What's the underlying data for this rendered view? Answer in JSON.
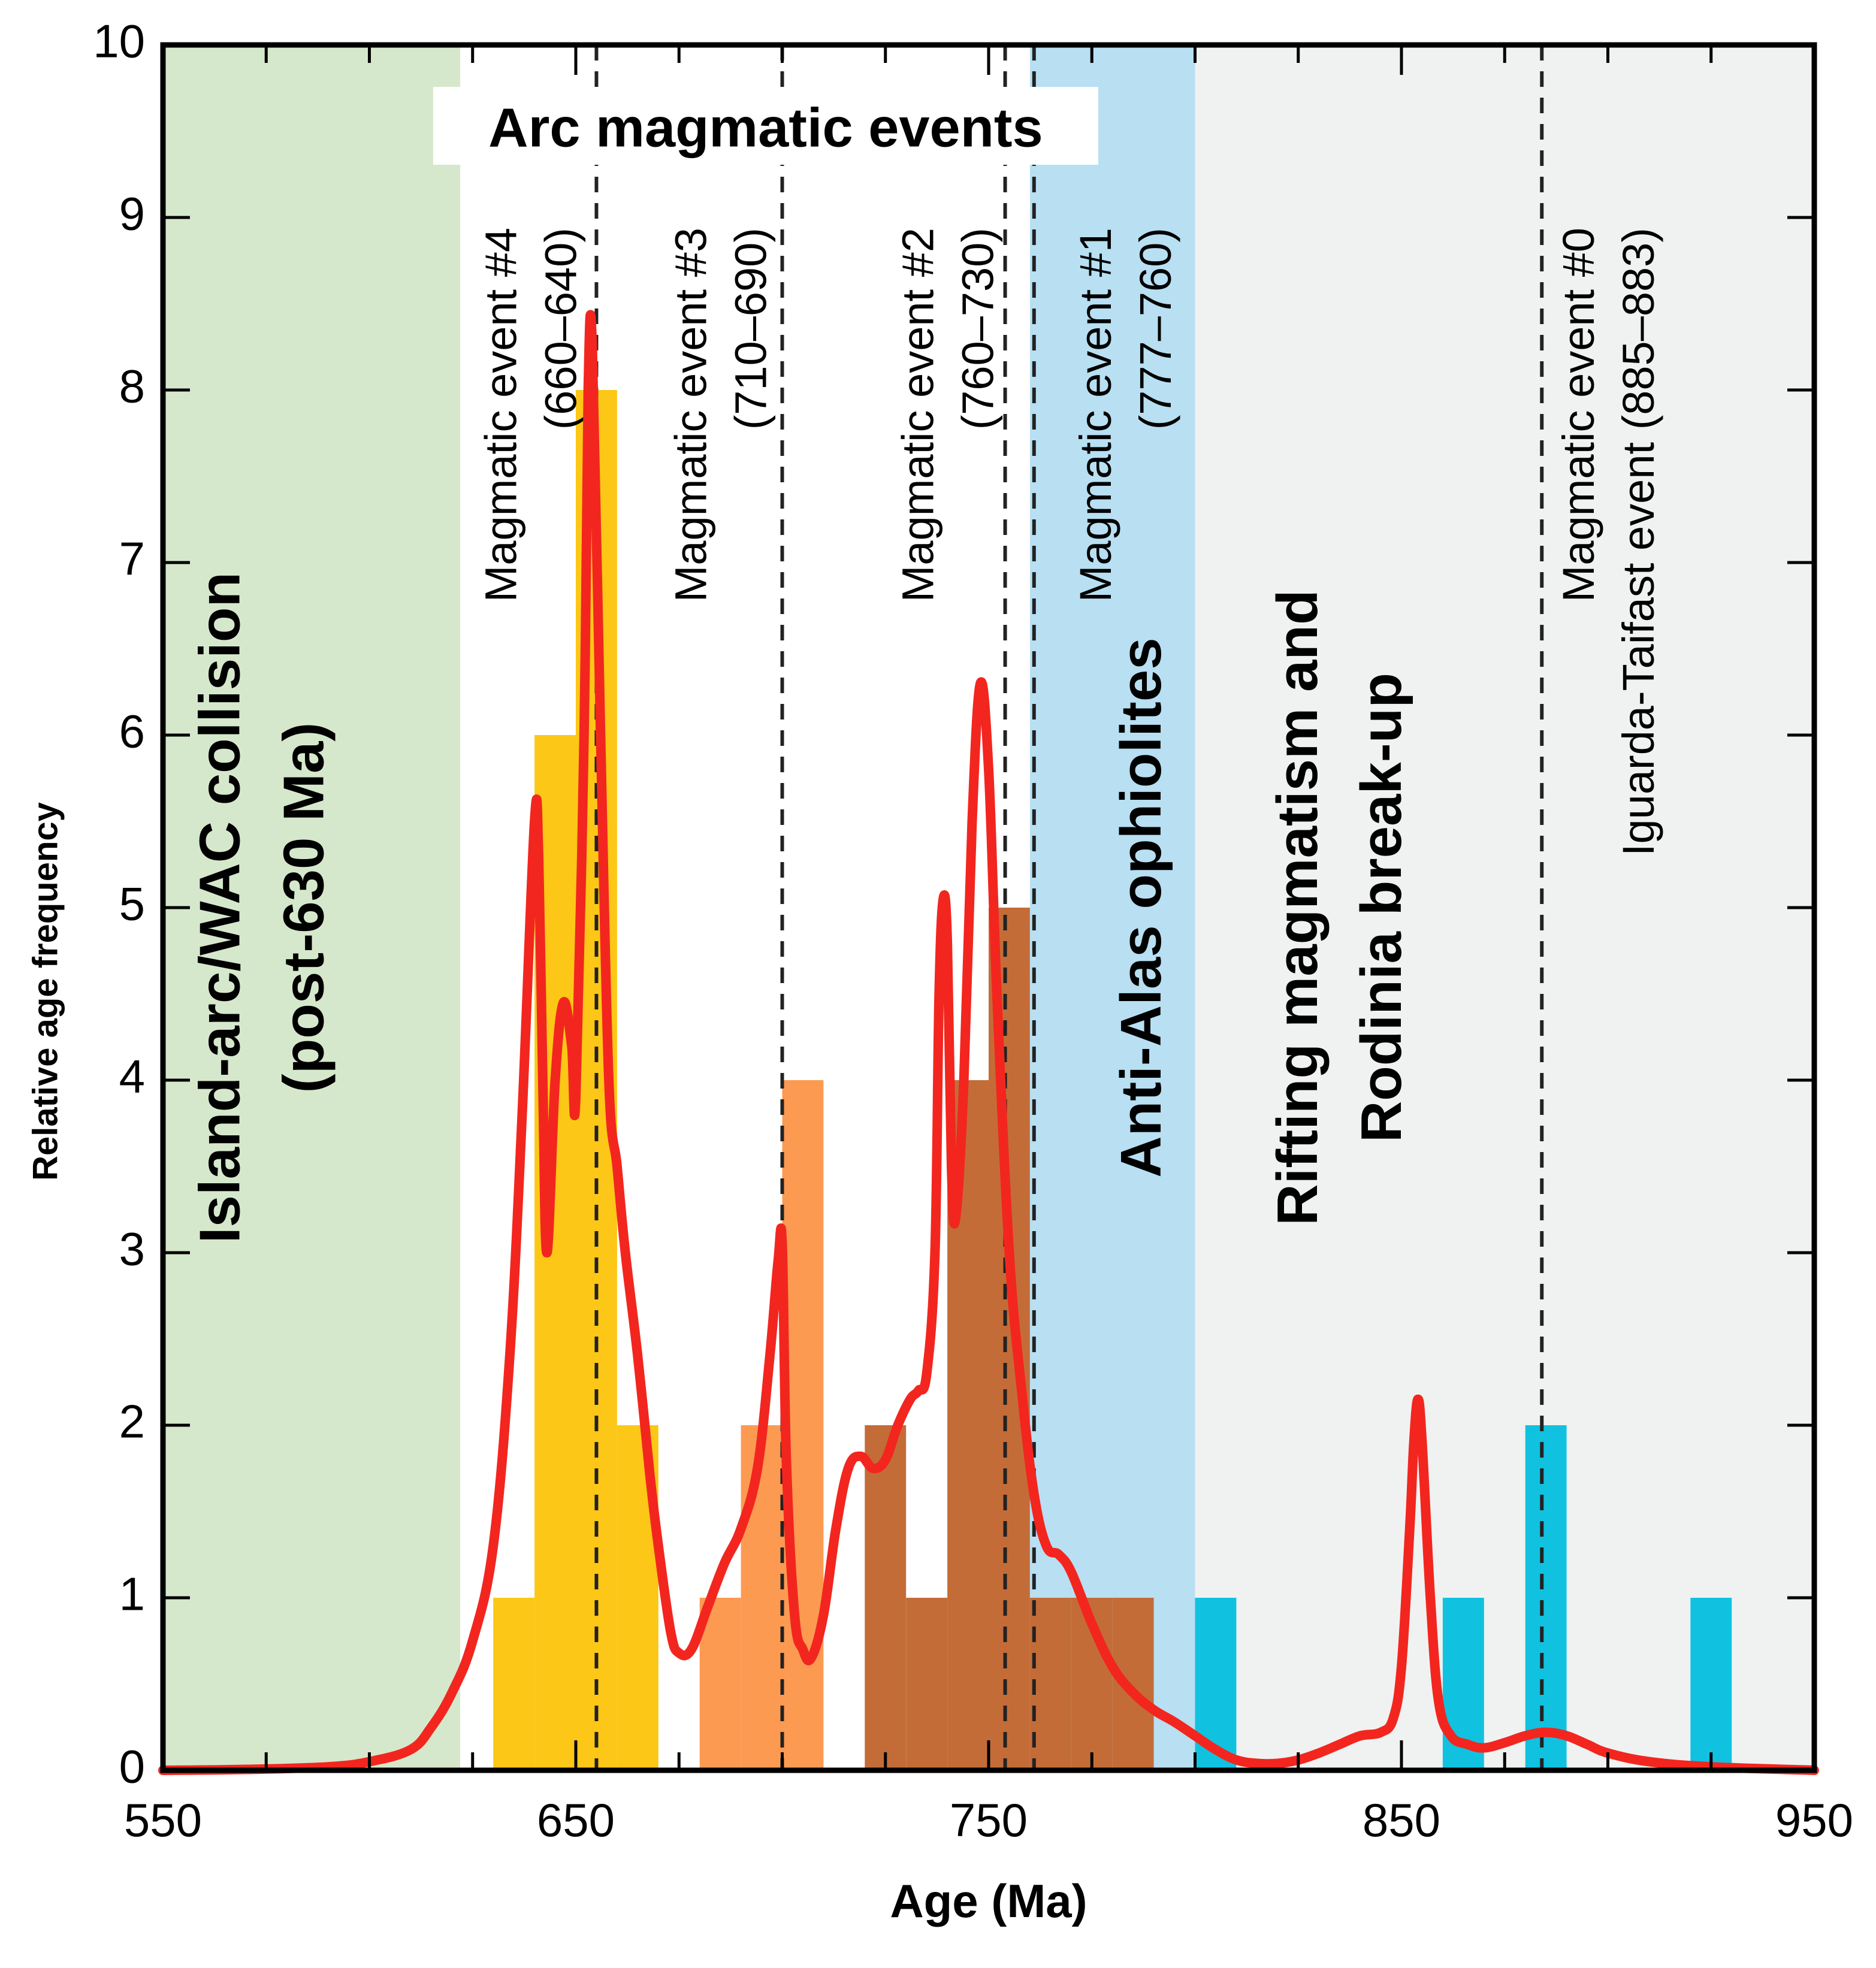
{
  "chart_data": {
    "type": "bar",
    "xlabel": "Age (Ma)",
    "ylabel": "Relative age frequency",
    "xlim": [
      550,
      950
    ],
    "ylim": [
      0,
      10
    ],
    "xticks": [
      550,
      650,
      750,
      850,
      950
    ],
    "yticks": [
      0,
      1,
      2,
      3,
      4,
      5,
      6,
      7,
      8,
      9,
      10
    ],
    "minor_x_step": 25,
    "bin_width": 10,
    "regions": [
      {
        "name": "island-arc",
        "x0": 550,
        "x1": 622,
        "color": "#d6e8cc",
        "label_lines": [
          "Island-arc/WAC collision",
          "(post-630 Ma)"
        ],
        "label_pos": 575
      },
      {
        "name": "arc",
        "x0": 622,
        "x1": 760,
        "color": "#ffffff",
        "label_lines": [],
        "label_pos": 0
      },
      {
        "name": "anti-atlas",
        "x0": 760,
        "x1": 800,
        "color": "#b8dff2",
        "label_lines": [
          "Anti-Alas ophiolites"
        ],
        "label_pos": 788
      },
      {
        "name": "rifting",
        "x0": 800,
        "x1": 950,
        "color": "#eff2f1",
        "label_lines": [
          "Rifting magmatism and",
          "Rodinia break-up"
        ],
        "label_pos": 836
      }
    ],
    "arc_title": "Arc magmatic events",
    "series": [
      {
        "name": "event-4",
        "color": "#fcc716",
        "bins": [
          [
            630,
            1
          ],
          [
            640,
            6
          ],
          [
            650,
            8
          ],
          [
            660,
            2
          ]
        ]
      },
      {
        "name": "event-3",
        "color": "#fc9a52",
        "bins": [
          [
            680,
            1
          ],
          [
            690,
            2
          ],
          [
            700,
            4
          ]
        ]
      },
      {
        "name": "event-2",
        "color": "#c46c38",
        "bins": [
          [
            720,
            2
          ],
          [
            730,
            1
          ],
          [
            740,
            4
          ],
          [
            750,
            5
          ],
          [
            760,
            1
          ]
        ]
      },
      {
        "name": "event-1",
        "color": "#c46c38",
        "bins": [
          [
            770,
            1
          ],
          [
            780,
            1
          ]
        ]
      },
      {
        "name": "event-0",
        "color": "#10c2e0",
        "bins": [
          [
            800,
            1
          ],
          [
            860,
            1
          ],
          [
            880,
            2
          ],
          [
            920,
            1
          ]
        ]
      }
    ],
    "vlines": [
      655,
      700,
      754,
      761,
      884
    ],
    "event_labels": [
      {
        "name": "event-4",
        "x": 640,
        "lines": [
          "Magmatic event #4",
          "(660–640)"
        ]
      },
      {
        "name": "event-3",
        "x": 686,
        "lines": [
          "Magmatic event #3",
          "(710–690)"
        ]
      },
      {
        "name": "event-2",
        "x": 741,
        "lines": [
          "Magmatic event #2",
          "(760–730)"
        ]
      },
      {
        "name": "event-1",
        "x": 784,
        "lines": [
          "Magmatic event #1",
          "(777–760)"
        ]
      },
      {
        "name": "event-0",
        "x": 901,
        "lines": [
          "Magmatic event #0",
          "Iguarda-Taifast event (885–883)"
        ]
      }
    ],
    "curve": {
      "color": "#f2261f",
      "points": [
        [
          550,
          0
        ],
        [
          570,
          0.005
        ],
        [
          590,
          0.02
        ],
        [
          600,
          0.05
        ],
        [
          610,
          0.12
        ],
        [
          615,
          0.25
        ],
        [
          620,
          0.45
        ],
        [
          625,
          0.75
        ],
        [
          630,
          1.3
        ],
        [
          634,
          2.4
        ],
        [
          637,
          3.8
        ],
        [
          640,
          5.5
        ],
        [
          641,
          5.3
        ],
        [
          642,
          4.0
        ],
        [
          643,
          3.0
        ],
        [
          645,
          4.0
        ],
        [
          647,
          4.45
        ],
        [
          649,
          4.2
        ],
        [
          650,
          3.9
        ],
        [
          652,
          6.0
        ],
        [
          653,
          8.0
        ],
        [
          654,
          8.25
        ],
        [
          656,
          6.0
        ],
        [
          658,
          4.0
        ],
        [
          660,
          3.5
        ],
        [
          662,
          3.0
        ],
        [
          665,
          2.4
        ],
        [
          668,
          1.7
        ],
        [
          670,
          1.3
        ],
        [
          673,
          0.8
        ],
        [
          675,
          0.68
        ],
        [
          678,
          0.7
        ],
        [
          682,
          0.95
        ],
        [
          686,
          1.2
        ],
        [
          690,
          1.4
        ],
        [
          694,
          1.75
        ],
        [
          697,
          2.4
        ],
        [
          699,
          2.95
        ],
        [
          700,
          3.05
        ],
        [
          701,
          1.8
        ],
        [
          703,
          0.9
        ],
        [
          705,
          0.7
        ],
        [
          707,
          0.65
        ],
        [
          710,
          0.9
        ],
        [
          713,
          1.4
        ],
        [
          716,
          1.75
        ],
        [
          719,
          1.82
        ],
        [
          722,
          1.75
        ],
        [
          725,
          1.8
        ],
        [
          728,
          2.0
        ],
        [
          731,
          2.15
        ],
        [
          733,
          2.2
        ],
        [
          735,
          2.3
        ],
        [
          737,
          3.0
        ],
        [
          738,
          4.5
        ],
        [
          739,
          5.05
        ],
        [
          740,
          4.8
        ],
        [
          741,
          3.5
        ],
        [
          742,
          3.2
        ],
        [
          744,
          4.0
        ],
        [
          746,
          5.5
        ],
        [
          748,
          6.3
        ],
        [
          750,
          5.8
        ],
        [
          752,
          4.5
        ],
        [
          755,
          3.0
        ],
        [
          758,
          2.2
        ],
        [
          761,
          1.6
        ],
        [
          764,
          1.3
        ],
        [
          767,
          1.25
        ],
        [
          770,
          1.15
        ],
        [
          775,
          0.85
        ],
        [
          780,
          0.6
        ],
        [
          785,
          0.45
        ],
        [
          790,
          0.35
        ],
        [
          795,
          0.28
        ],
        [
          800,
          0.2
        ],
        [
          805,
          0.12
        ],
        [
          810,
          0.06
        ],
        [
          815,
          0.04
        ],
        [
          820,
          0.04
        ],
        [
          825,
          0.06
        ],
        [
          830,
          0.1
        ],
        [
          835,
          0.15
        ],
        [
          840,
          0.2
        ],
        [
          845,
          0.22
        ],
        [
          848,
          0.3
        ],
        [
          850,
          0.6
        ],
        [
          852,
          1.4
        ],
        [
          853,
          1.9
        ],
        [
          854,
          2.15
        ],
        [
          855,
          1.9
        ],
        [
          857,
          1.0
        ],
        [
          859,
          0.4
        ],
        [
          862,
          0.2
        ],
        [
          866,
          0.15
        ],
        [
          870,
          0.13
        ],
        [
          875,
          0.16
        ],
        [
          880,
          0.2
        ],
        [
          885,
          0.22
        ],
        [
          890,
          0.2
        ],
        [
          895,
          0.15
        ],
        [
          900,
          0.1
        ],
        [
          910,
          0.05
        ],
        [
          925,
          0.02
        ],
        [
          950,
          0
        ]
      ]
    }
  }
}
